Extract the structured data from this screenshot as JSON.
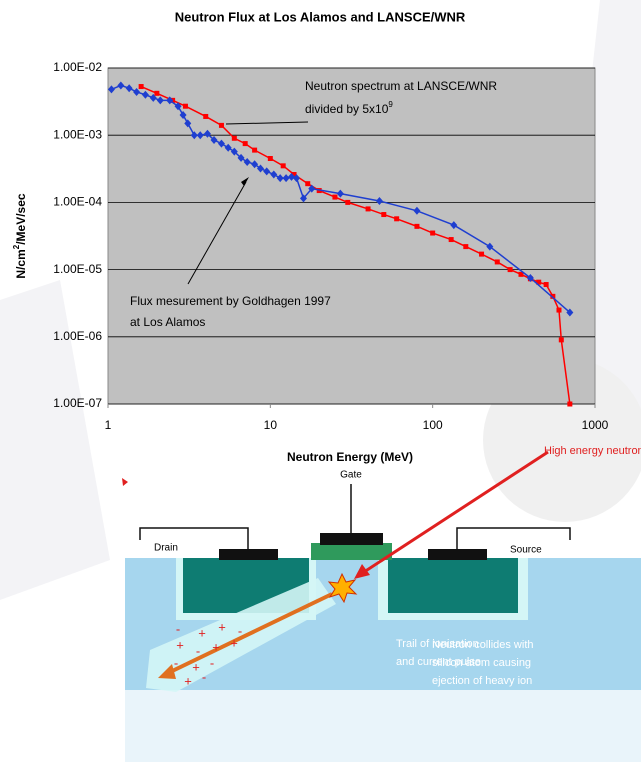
{
  "chart_data": {
    "type": "line",
    "title": "Neutron Flux at Los Alamos and LANSCE/WNR",
    "x_label": "Neutron Energy (MeV)",
    "y_label": {
      "parts": [
        "N/cm",
        "2",
        "/MeV/sec"
      ]
    },
    "xscale": "log",
    "yscale": "log",
    "grid": true,
    "background": "#c0c0c0",
    "xlim": [
      1,
      1000
    ],
    "xticks": [
      1,
      10,
      100,
      1000
    ],
    "ylim": [
      1e-07,
      0.01
    ],
    "yticks": [
      {
        "value": 1e-07,
        "label": "1.00E-07"
      },
      {
        "value": 1e-06,
        "label": "1.00E-06"
      },
      {
        "value": 1e-05,
        "label": "1.00E-05"
      },
      {
        "value": 0.0001,
        "label": "1.00E-04"
      },
      {
        "value": 0.001,
        "label": "1.00E-03"
      },
      {
        "value": 0.01,
        "label": "1.00E-02"
      }
    ],
    "series": [
      {
        "color": "#ff0000",
        "marker": "square",
        "x": [
          1.6,
          2,
          2.5,
          3,
          4,
          5,
          6,
          7,
          8,
          10,
          12,
          14,
          17,
          20,
          25,
          30,
          40,
          50,
          60,
          80,
          100,
          130,
          160,
          200,
          250,
          300,
          350,
          400,
          450,
          500,
          550,
          600,
          620,
          700
        ],
        "values": [
          0.0053,
          0.0042,
          0.0033,
          0.0027,
          0.0019,
          0.0014,
          0.0009,
          0.00075,
          0.0006,
          0.00045,
          0.00035,
          0.00026,
          0.00019,
          0.00015,
          0.00012,
          0.0001,
          8e-05,
          6.6e-05,
          5.7e-05,
          4.4e-05,
          3.5e-05,
          2.8e-05,
          2.2e-05,
          1.7e-05,
          1.3e-05,
          1e-05,
          8.5e-06,
          7.3e-06,
          6.5e-06,
          6e-06,
          4e-06,
          2.5e-06,
          9e-07,
          1e-07
        ]
      },
      {
        "color": "#1f3fd0",
        "marker": "diamond",
        "x": [
          1.05,
          1.2,
          1.35,
          1.5,
          1.7,
          1.9,
          2.1,
          2.4,
          2.7,
          2.9,
          3.1,
          3.4,
          3.7,
          4.1,
          4.5,
          5,
          5.5,
          6,
          6.6,
          7.2,
          8,
          8.7,
          9.5,
          10.5,
          11.5,
          12.5,
          13.5,
          14.5,
          16,
          18,
          27,
          47,
          80,
          135,
          225,
          400,
          700
        ],
        "values": [
          0.0048,
          0.0055,
          0.005,
          0.0044,
          0.004,
          0.0036,
          0.0033,
          0.0033,
          0.0027,
          0.002,
          0.0015,
          0.001,
          0.001,
          0.00105,
          0.00085,
          0.00075,
          0.00065,
          0.00057,
          0.00046,
          0.0004,
          0.00037,
          0.00032,
          0.00029,
          0.00026,
          0.00023,
          0.00023,
          0.00024,
          0.00023,
          0.000115,
          0.00016,
          0.000135,
          0.000105,
          7.5e-05,
          4.6e-05,
          2.2e-05,
          7.5e-06,
          2.3e-06
        ]
      }
    ],
    "annotations": [
      {
        "lines": [
          "Neutron spectrum at LANSCE/WNR",
          "divided by 5x10"
        ],
        "superscript": "9"
      },
      {
        "lines": [
          "Flux mesurement by Goldhagen 1997",
          "at Los Alamos"
        ]
      }
    ]
  },
  "diagram": {
    "labels": {
      "gate": "Gate",
      "drain": "Drain",
      "source": "Source",
      "neutron": "High energy neutron",
      "trail": [
        "Trail of ionisation",
        "and current pulse"
      ],
      "collision": [
        "Neutron collides with",
        "silicon atom causing",
        "ejection of heavy ion"
      ]
    },
    "charges": [
      "-",
      "+",
      "+",
      "-",
      "+",
      "-",
      "+",
      "+",
      "-",
      "+",
      "-",
      "+",
      "-"
    ]
  }
}
